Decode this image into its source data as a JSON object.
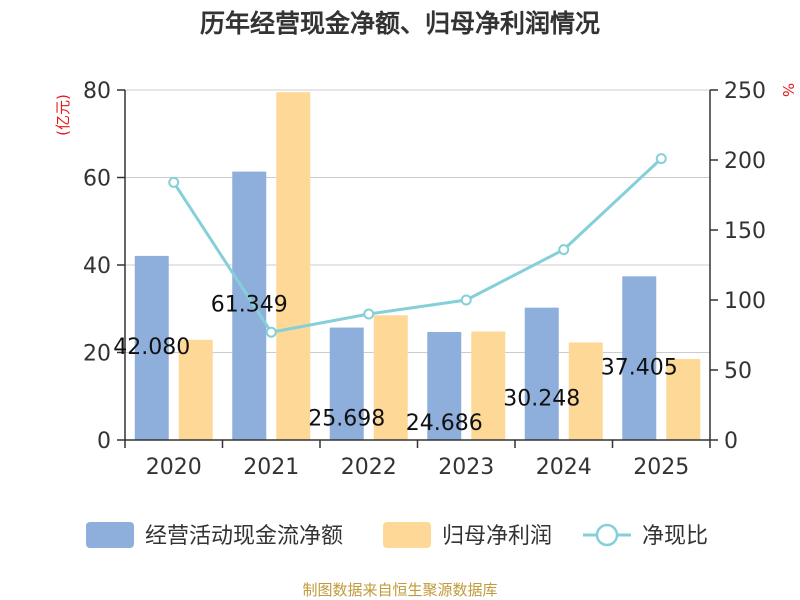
{
  "chart_data": {
    "type": "bar",
    "title": "历年经营现金净额、归母净利润情况",
    "y_left_unit": "(亿元)",
    "y_right_unit": "%",
    "categories": [
      "2020",
      "2021",
      "2022",
      "2023",
      "2024",
      "2025"
    ],
    "ylim_left": [
      0,
      80
    ],
    "yticks_left": [
      "0",
      "20",
      "40",
      "60",
      "80"
    ],
    "ylim_right": [
      0,
      250
    ],
    "yticks_right": [
      "0",
      "50",
      "100",
      "150",
      "200",
      "250"
    ],
    "grid": true,
    "legend_position": "bottom",
    "series": [
      {
        "name": "经营活动现金流净额",
        "kind": "bar",
        "axis": "left",
        "color": "#8eaedb",
        "values": [
          42.08,
          61.349,
          25.698,
          24.686,
          30.248,
          37.405
        ],
        "labels": [
          "42.080",
          "61.349",
          "25.698",
          "24.686",
          "30.248",
          "37.405"
        ]
      },
      {
        "name": "归母净利润",
        "kind": "bar",
        "axis": "left",
        "color": "#fdd897",
        "values": [
          22.9,
          79.5,
          28.5,
          24.8,
          22.3,
          18.5
        ]
      },
      {
        "name": "净现比",
        "kind": "line",
        "axis": "right",
        "color": "#85d0d8",
        "values": [
          184,
          77,
          90,
          100,
          136,
          201
        ]
      }
    ],
    "source_note": "制图数据来自恒生聚源数据库"
  }
}
